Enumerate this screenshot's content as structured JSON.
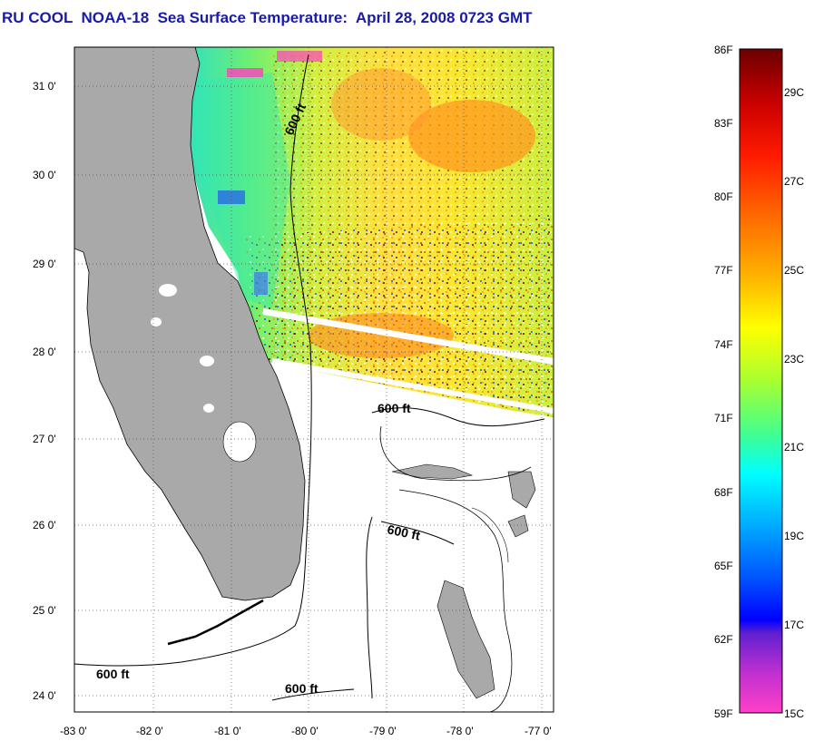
{
  "title": "RU COOL  NOAA-18  Sea Surface Temperature:  April 28, 2008 0723 GMT",
  "map": {
    "lon_range": [
      -83,
      -76.8
    ],
    "lat_range": [
      23.8,
      31.4
    ],
    "lat_ticks": [
      "31 0'",
      "30 0'",
      "29 0'",
      "28 0'",
      "27 0'",
      "26 0'",
      "25 0'",
      "24 0'"
    ],
    "lon_ticks": [
      "-83 0'",
      "-82 0'",
      "-81 0'",
      "-80 0'",
      "-79 0'",
      "-78 0'",
      "-77 0'"
    ],
    "land_color": "#a9a9a9",
    "contour_labels": [
      "600 ft",
      "600 ft",
      "600 ft",
      "600 ft",
      "600 ft"
    ]
  },
  "colorbar": {
    "fahrenheit_labels": [
      "86F",
      "83F",
      "80F",
      "77F",
      "74F",
      "71F",
      "68F",
      "65F",
      "62F",
      "59F"
    ],
    "celsius_labels": [
      "29C",
      "27C",
      "25C",
      "23C",
      "21C",
      "19C",
      "17C",
      "15C"
    ],
    "colors": [
      "#7a0000",
      "#d40000",
      "#ff3300",
      "#ff7a00",
      "#ffc000",
      "#ffff00",
      "#9cff33",
      "#33ff99",
      "#00ffff",
      "#0090ff",
      "#0040ff",
      "#0000ff",
      "#8020c0",
      "#ff40c0"
    ]
  }
}
